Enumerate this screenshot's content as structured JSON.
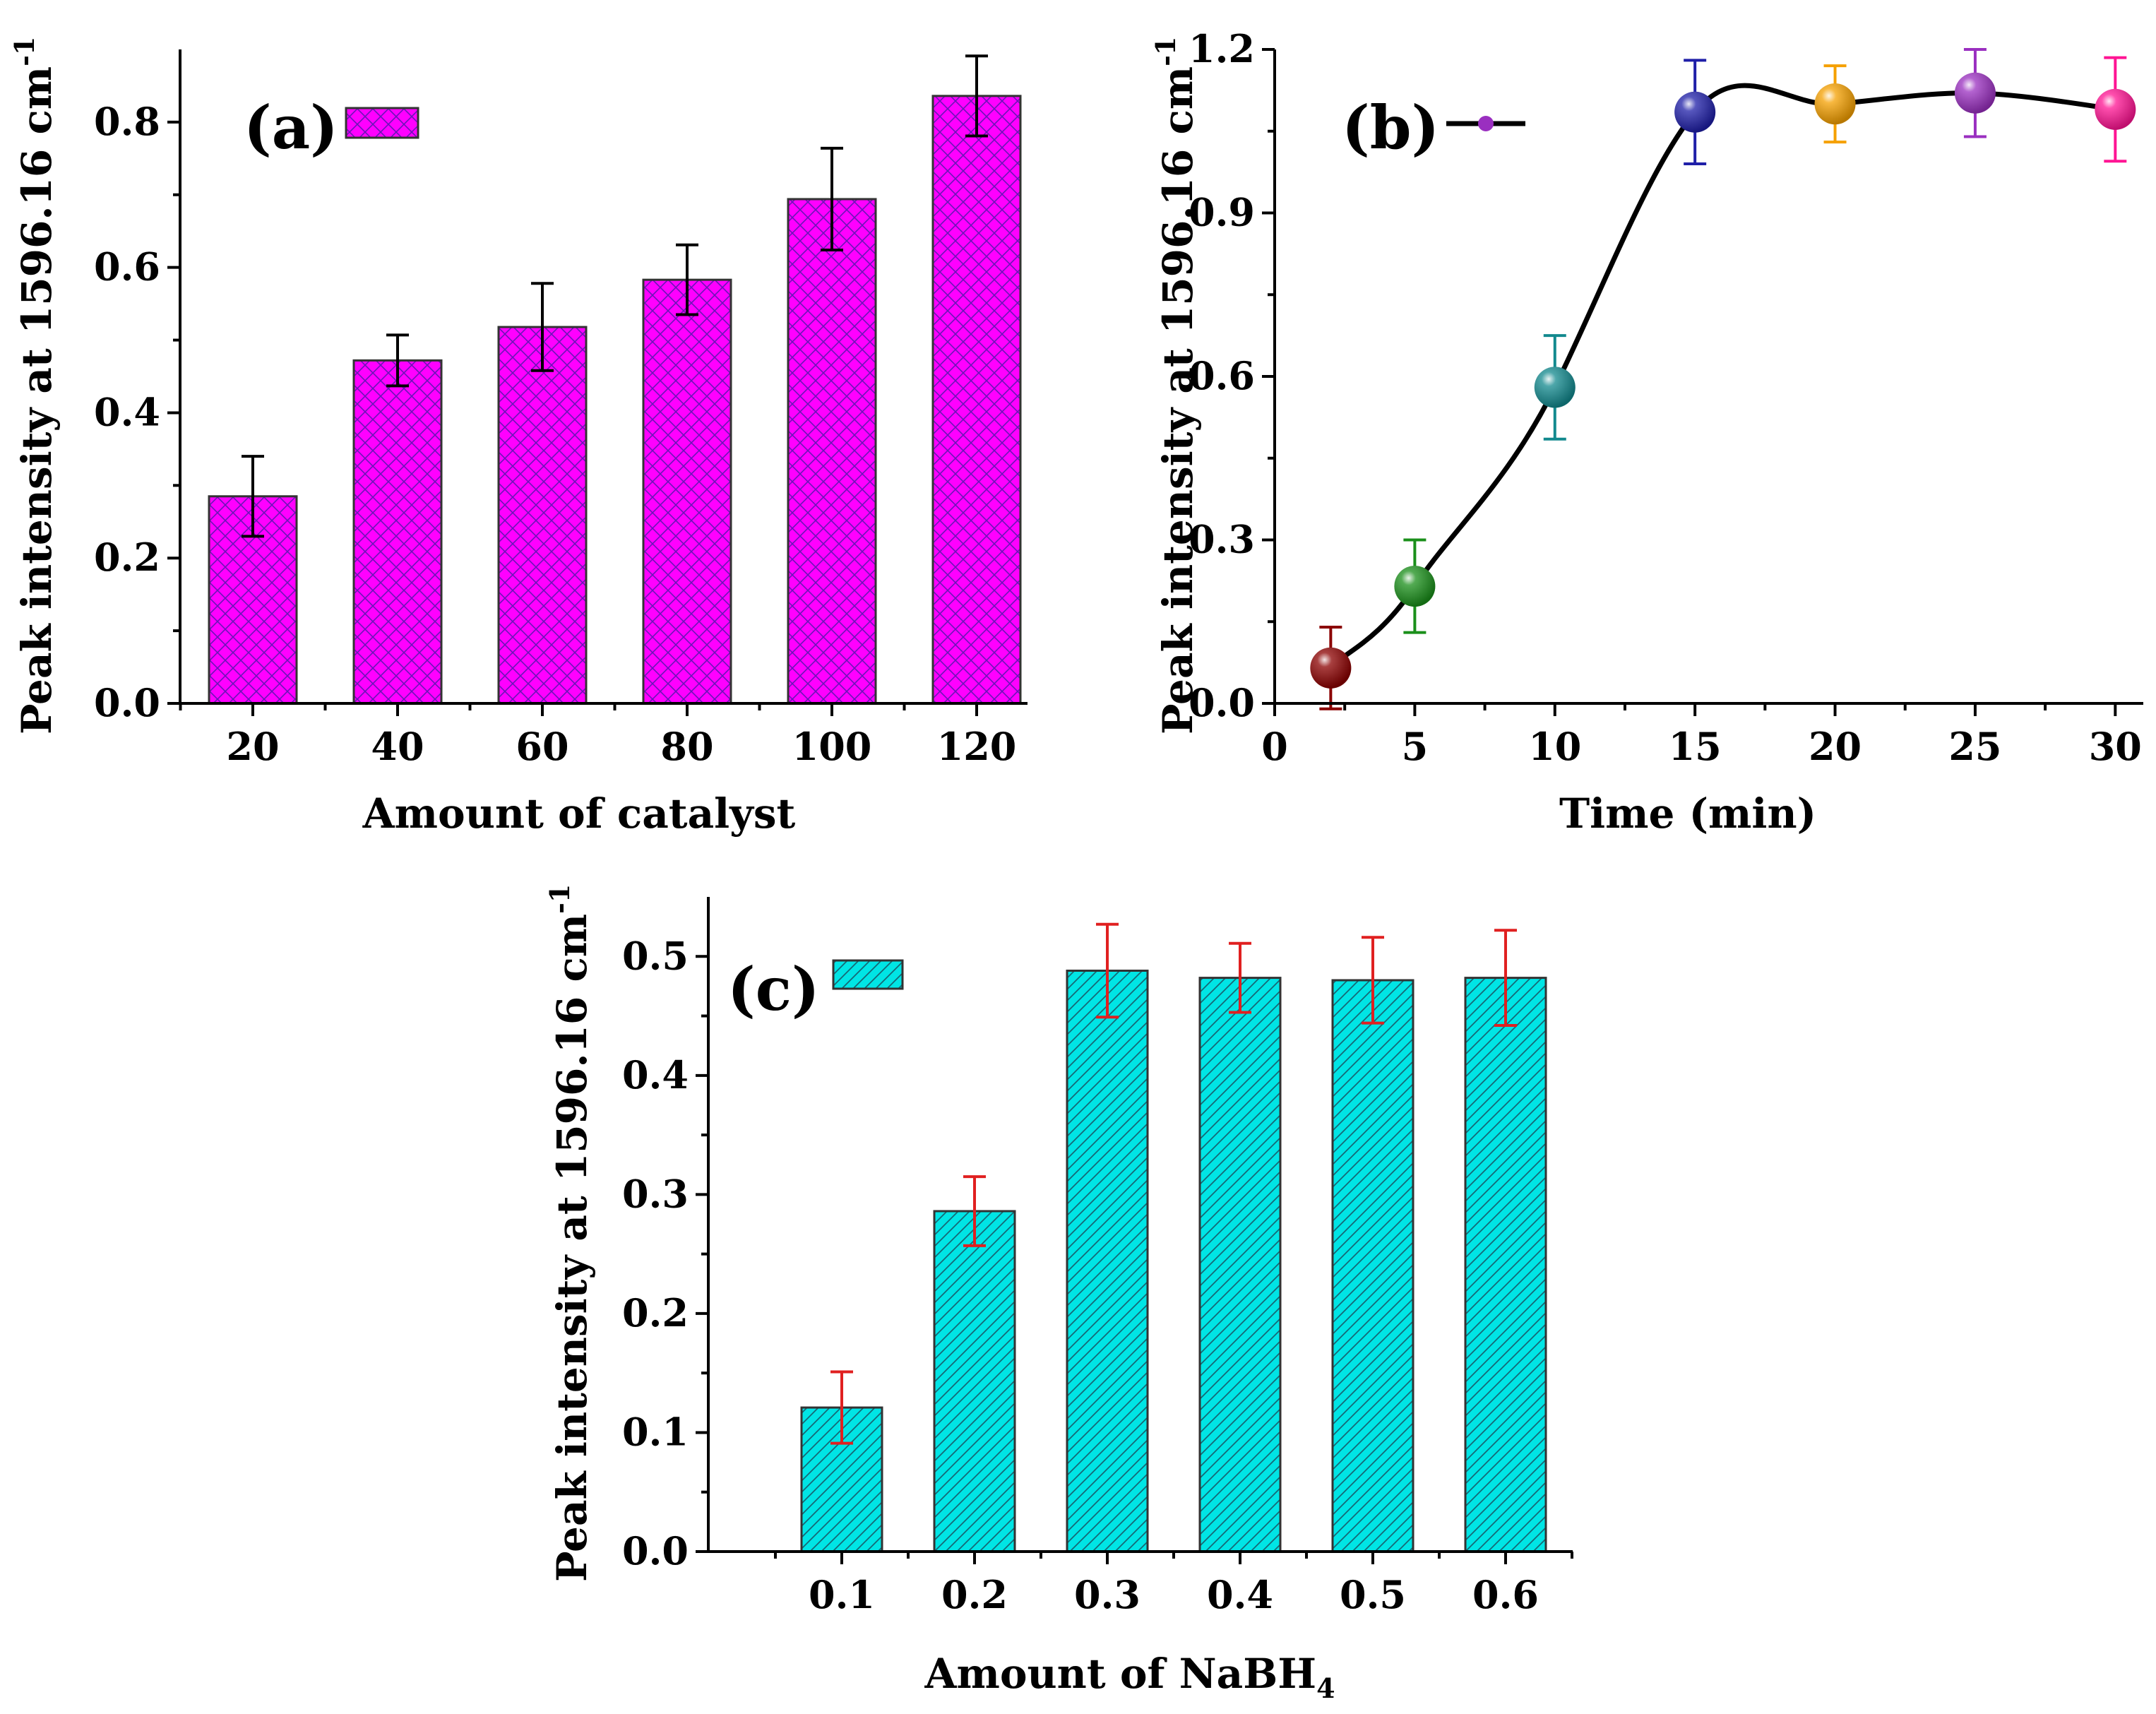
{
  "chart_data": [
    {
      "panel": "(a)",
      "type": "bar",
      "categories": [
        "20",
        "40",
        "60",
        "80",
        "100",
        "120"
      ],
      "values": [
        0.285,
        0.472,
        0.518,
        0.583,
        0.694,
        0.836
      ],
      "errors": [
        0.055,
        0.035,
        0.06,
        0.048,
        0.07,
        0.055
      ],
      "xlabel": "Amount of catalyst",
      "ylabel": "Peak intensity at 1596.16 cm",
      "ylabel_sup": "-1",
      "ylim": [
        0,
        0.9
      ],
      "yticks": [
        "0.0",
        "0.2",
        "0.4",
        "0.6",
        "0.8"
      ],
      "color": "#ff00ff",
      "error_color": "#000000"
    },
    {
      "panel": "(b)",
      "type": "line",
      "x": [
        2,
        5,
        10,
        15,
        20,
        25,
        30
      ],
      "values": [
        0.065,
        0.215,
        0.58,
        1.085,
        1.1,
        1.12,
        1.09
      ],
      "errors": [
        0.075,
        0.085,
        0.095,
        0.095,
        0.07,
        0.08,
        0.095
      ],
      "point_colors": [
        "#8b0000",
        "#1a8f1a",
        "#12898e",
        "#1f1fa8",
        "#f5a000",
        "#9a2fc0",
        "#ff1493"
      ],
      "xlabel": "Time (min)",
      "ylabel": "Peak intensity at 1596.16 cm",
      "ylabel_sup": "-1",
      "xlim": [
        0,
        31
      ],
      "ylim": [
        0,
        1.2
      ],
      "xticks": [
        "0",
        "5",
        "10",
        "15",
        "20",
        "25",
        "30"
      ],
      "yticks": [
        "0.0",
        "0.3",
        "0.6",
        "0.9",
        "1.2"
      ],
      "legend_color": "#9a2fc0"
    },
    {
      "panel": "(c)",
      "type": "bar",
      "categories": [
        "0.1",
        "0.2",
        "0.3",
        "0.4",
        "0.5",
        "0.6"
      ],
      "values": [
        0.121,
        0.286,
        0.488,
        0.482,
        0.48,
        0.482
      ],
      "errors": [
        0.03,
        0.029,
        0.039,
        0.029,
        0.036,
        0.04
      ],
      "xlabel": "Amount of NaBH",
      "xlabel_sub": "4",
      "ylabel": "Peak intensity at 1596.16 cm",
      "ylabel_sup": "-1",
      "ylim": [
        0,
        0.55
      ],
      "yticks": [
        "0.0",
        "0.1",
        "0.2",
        "0.3",
        "0.4",
        "0.5"
      ],
      "color": "#00e5e5",
      "error_color": "#e02020"
    }
  ]
}
